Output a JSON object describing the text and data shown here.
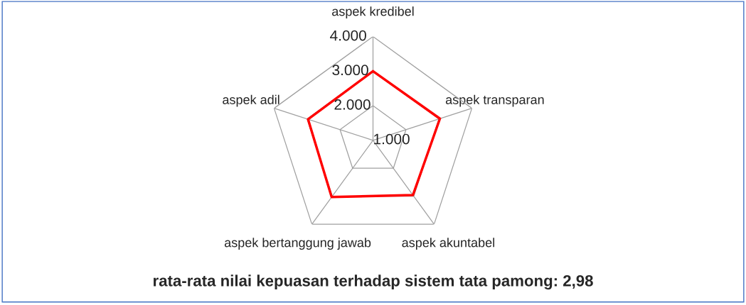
{
  "chart_data": {
    "type": "radar",
    "title": "rata-rata nilai kepuasan terhadap sistem tata pamong: 2,98",
    "categories": [
      "aspek kredibel",
      "aspek transparan",
      "aspek akuntabel",
      "aspek bertanggung jawab",
      "aspek adil"
    ],
    "series": [
      {
        "color": "#ff0000",
        "values": [
          3.0,
          3.03,
          2.96,
          3.03,
          2.97
        ]
      }
    ],
    "ylim": [
      1,
      4
    ],
    "yticks": [
      {
        "value": 1,
        "label": "1.000"
      },
      {
        "value": 2,
        "label": "2.000"
      },
      {
        "value": 3,
        "label": "3.000"
      },
      {
        "value": 4,
        "label": "4.000"
      }
    ],
    "grid": true,
    "marker": "none",
    "line_style": "solid"
  }
}
